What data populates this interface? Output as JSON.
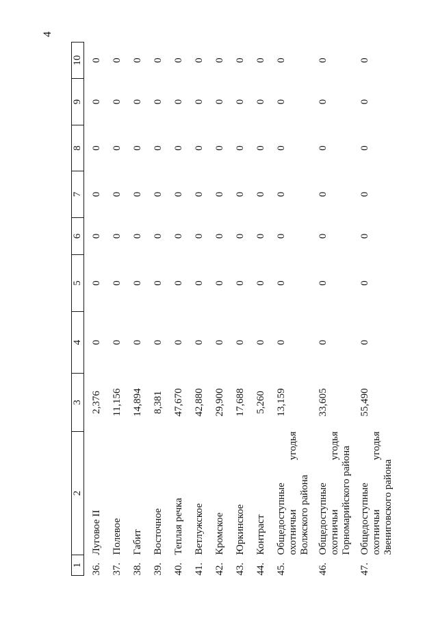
{
  "page": {
    "number": "4"
  },
  "table": {
    "columns": [
      "1",
      "2",
      "3",
      "4",
      "5",
      "6",
      "7",
      "8",
      "9",
      "10"
    ],
    "rows": [
      {
        "num": "36.",
        "name_lines": [
          "Луговое II"
        ],
        "area": "2,376",
        "zeros": [
          "0",
          "0",
          "0",
          "0",
          "0",
          "0",
          "0"
        ]
      },
      {
        "num": "37.",
        "name_lines": [
          "Полевое"
        ],
        "area": "11,156",
        "zeros": [
          "0",
          "0",
          "0",
          "0",
          "0",
          "0",
          "0"
        ]
      },
      {
        "num": "38.",
        "name_lines": [
          "Габит"
        ],
        "area": "14,894",
        "zeros": [
          "0",
          "0",
          "0",
          "0",
          "0",
          "0",
          "0"
        ]
      },
      {
        "num": "39.",
        "name_lines": [
          "Восточное"
        ],
        "area": "8,381",
        "zeros": [
          "0",
          "0",
          "0",
          "0",
          "0",
          "0",
          "0"
        ]
      },
      {
        "num": "40.",
        "name_lines": [
          "Теплая речка"
        ],
        "area": "47,670",
        "zeros": [
          "0",
          "0",
          "0",
          "0",
          "0",
          "0",
          "0"
        ]
      },
      {
        "num": "41.",
        "name_lines": [
          "Ветлужское"
        ],
        "area": "42,880",
        "zeros": [
          "0",
          "0",
          "0",
          "0",
          "0",
          "0",
          "0"
        ]
      },
      {
        "num": "42.",
        "name_lines": [
          "Кромское"
        ],
        "area": "29,900",
        "zeros": [
          "0",
          "0",
          "0",
          "0",
          "0",
          "0",
          "0"
        ]
      },
      {
        "num": "43.",
        "name_lines": [
          "Юркинское"
        ],
        "area": "17,688",
        "zeros": [
          "0",
          "0",
          "0",
          "0",
          "0",
          "0",
          "0"
        ]
      },
      {
        "num": "44.",
        "name_lines": [
          "Контраст"
        ],
        "area": "5,260",
        "zeros": [
          "0",
          "0",
          "0",
          "0",
          "0",
          "0",
          "0"
        ]
      },
      {
        "num": "45.",
        "name_lines": [
          "Общедоступные",
          {
            "left": "охотничьи",
            "right": "угодья"
          },
          "Волжского района"
        ],
        "area": "13,159",
        "zeros": [
          "0",
          "0",
          "0",
          "0",
          "0",
          "0",
          "0"
        ]
      },
      {
        "num": "46.",
        "name_lines": [
          "Общедоступные",
          {
            "left": "охотничьи",
            "right": "угодья"
          },
          "Горномарийского района"
        ],
        "area": "33,605",
        "zeros": [
          "0",
          "0",
          "0",
          "0",
          "0",
          "0",
          "0"
        ]
      },
      {
        "num": "47.",
        "name_lines": [
          "Общедоступные",
          {
            "left": "охотничьи",
            "right": "угодья"
          },
          "Звениговского района"
        ],
        "area": "55,490",
        "zeros": [
          "0",
          "0",
          "0",
          "0",
          "0",
          "0",
          "0"
        ]
      }
    ]
  }
}
